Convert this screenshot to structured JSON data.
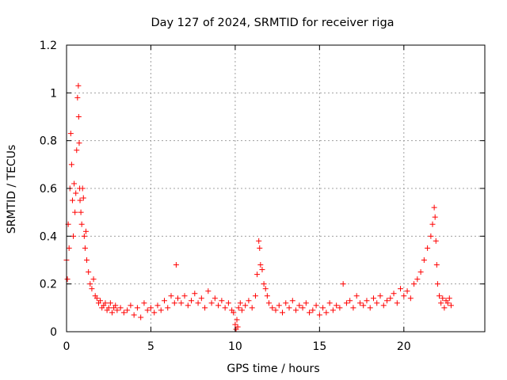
{
  "chart_data": {
    "type": "scatter",
    "title": "Day 127 of 2024, SRMTID for receiver riga",
    "xlabel": "GPS time / hours",
    "ylabel": "SRMTID / TECUs",
    "xlim": [
      0,
      24.8
    ],
    "ylim": [
      0,
      1.2
    ],
    "xticks": [
      0,
      5,
      10,
      15,
      20
    ],
    "xtick_labels": [
      "0",
      "5",
      "10",
      "15",
      "20"
    ],
    "yticks": [
      0,
      0.2,
      0.4,
      0.6,
      0.8,
      1.0,
      1.2
    ],
    "ytick_labels": [
      "0",
      "0.2",
      "0.4",
      "0.6",
      "0.8",
      "1",
      "1.2"
    ],
    "grid": true,
    "marker": "+",
    "color": "#ff0000",
    "series": [
      {
        "name": "riga",
        "x": [
          0.0,
          0.05,
          0.1,
          0.15,
          0.2,
          0.25,
          0.3,
          0.35,
          0.4,
          0.45,
          0.5,
          0.55,
          0.6,
          0.65,
          0.7,
          0.72,
          0.75,
          0.78,
          0.8,
          0.85,
          0.9,
          0.95,
          1.0,
          1.05,
          1.1,
          1.15,
          1.2,
          1.3,
          1.4,
          1.5,
          1.6,
          1.7,
          1.8,
          1.9,
          2.0,
          2.1,
          2.2,
          2.3,
          2.4,
          2.5,
          2.6,
          2.7,
          2.8,
          2.9,
          3.0,
          3.2,
          3.4,
          3.6,
          3.8,
          4.0,
          4.2,
          4.4,
          4.6,
          4.8,
          5.0,
          5.2,
          5.4,
          5.6,
          5.8,
          6.0,
          6.2,
          6.4,
          6.5,
          6.6,
          6.8,
          7.0,
          7.2,
          7.4,
          7.6,
          7.8,
          8.0,
          8.2,
          8.4,
          8.6,
          8.8,
          9.0,
          9.2,
          9.4,
          9.6,
          9.8,
          9.9,
          10.0,
          10.05,
          10.1,
          10.15,
          10.2,
          10.3,
          10.4,
          10.6,
          10.8,
          11.0,
          11.2,
          11.3,
          11.4,
          11.45,
          11.5,
          11.6,
          11.7,
          11.8,
          11.9,
          12.0,
          12.2,
          12.4,
          12.6,
          12.8,
          13.0,
          13.2,
          13.4,
          13.6,
          13.8,
          14.0,
          14.2,
          14.4,
          14.6,
          14.8,
          15.0,
          15.2,
          15.4,
          15.6,
          15.8,
          16.0,
          16.2,
          16.4,
          16.6,
          16.8,
          17.0,
          17.2,
          17.4,
          17.6,
          17.8,
          18.0,
          18.2,
          18.4,
          18.6,
          18.8,
          19.0,
          19.2,
          19.4,
          19.6,
          19.8,
          20.0,
          20.2,
          20.4,
          20.6,
          20.8,
          21.0,
          21.2,
          21.4,
          21.6,
          21.7,
          21.8,
          21.85,
          21.9,
          21.95,
          22.0,
          22.1,
          22.2,
          22.3,
          22.4,
          22.5,
          22.6,
          22.7,
          22.8
        ],
        "y": [
          0.3,
          0.22,
          0.45,
          0.35,
          0.6,
          0.83,
          0.7,
          0.55,
          0.4,
          0.62,
          0.5,
          0.58,
          0.76,
          0.98,
          1.03,
          0.9,
          0.79,
          0.6,
          0.55,
          0.5,
          0.45,
          0.6,
          0.56,
          0.4,
          0.35,
          0.42,
          0.3,
          0.25,
          0.2,
          0.18,
          0.22,
          0.15,
          0.14,
          0.12,
          0.13,
          0.1,
          0.11,
          0.12,
          0.09,
          0.1,
          0.12,
          0.08,
          0.1,
          0.11,
          0.09,
          0.1,
          0.08,
          0.09,
          0.11,
          0.07,
          0.1,
          0.06,
          0.12,
          0.09,
          0.1,
          0.08,
          0.11,
          0.09,
          0.13,
          0.1,
          0.15,
          0.12,
          0.28,
          0.14,
          0.12,
          0.15,
          0.11,
          0.13,
          0.16,
          0.12,
          0.14,
          0.1,
          0.17,
          0.12,
          0.14,
          0.11,
          0.13,
          0.1,
          0.12,
          0.09,
          0.08,
          0.03,
          0.01,
          0.05,
          0.02,
          0.1,
          0.12,
          0.09,
          0.11,
          0.13,
          0.1,
          0.15,
          0.24,
          0.38,
          0.35,
          0.28,
          0.26,
          0.2,
          0.18,
          0.15,
          0.12,
          0.1,
          0.09,
          0.11,
          0.08,
          0.12,
          0.1,
          0.13,
          0.09,
          0.11,
          0.1,
          0.12,
          0.08,
          0.09,
          0.11,
          0.07,
          0.1,
          0.08,
          0.12,
          0.09,
          0.11,
          0.1,
          0.2,
          0.12,
          0.13,
          0.1,
          0.15,
          0.12,
          0.11,
          0.13,
          0.1,
          0.14,
          0.12,
          0.15,
          0.11,
          0.13,
          0.14,
          0.16,
          0.12,
          0.18,
          0.15,
          0.17,
          0.14,
          0.2,
          0.22,
          0.25,
          0.3,
          0.35,
          0.4,
          0.45,
          0.52,
          0.48,
          0.38,
          0.28,
          0.2,
          0.15,
          0.12,
          0.14,
          0.1,
          0.13,
          0.12,
          0.14,
          0.11
        ]
      }
    ]
  }
}
